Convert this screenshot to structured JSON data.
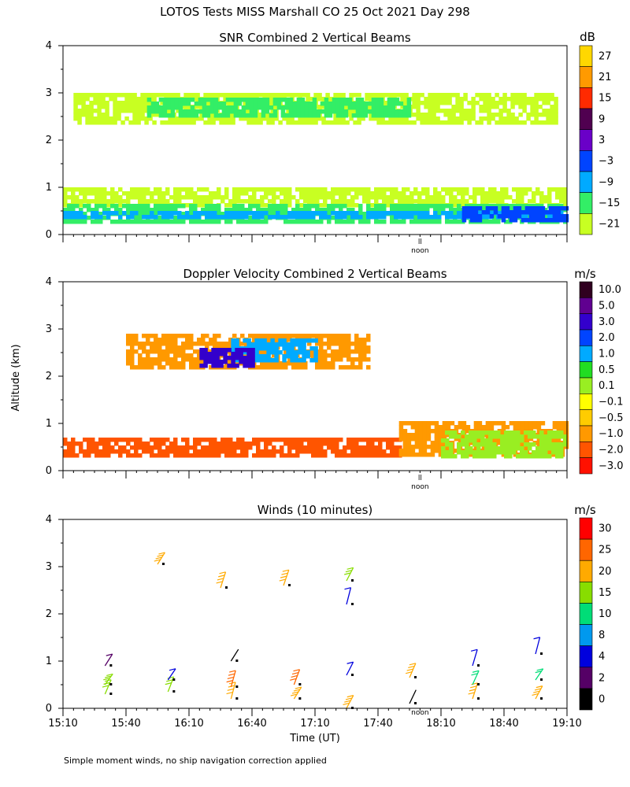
{
  "figure": {
    "main_title": "LOTOS Tests MISS Marshall CO  25 Oct 2021 Day 298",
    "y_axis_label": "Altitude (km)",
    "x_axis_label": "Time (UT)",
    "footnote": "Simple moment winds, no ship navigation correction applied",
    "noon_label": "noon",
    "noon_mark": "ll"
  },
  "chart_data": [
    {
      "type": "heatmap",
      "title": "SNR Combined 2 Vertical Beams",
      "unit": "dB",
      "ylim": [
        0,
        4
      ],
      "yticks": [
        "0",
        "1",
        "2",
        "3",
        "4"
      ],
      "x_start_hhmm": "15:10",
      "x_end_hhmm": "19:10",
      "noon_time": "18:00",
      "colorbar": {
        "labels": [
          "27",
          "21",
          "15",
          "9",
          "3",
          "−3",
          "−9",
          "−15",
          "−21"
        ],
        "colors": [
          "#ffd700",
          "#ff9a00",
          "#ff2a00",
          "#500050",
          "#6a00c8",
          "#0044ff",
          "#00aaff",
          "#33ee66",
          "#c8ff22"
        ]
      },
      "layers": [
        {
          "alt_range": [
            2.35,
            3.0
          ],
          "time_range": [
            "15:15",
            "19:05"
          ],
          "color": "#c8ff22"
        },
        {
          "alt_range": [
            2.55,
            2.9
          ],
          "time_range": [
            "15:50",
            "17:55"
          ],
          "color": "#33ee66"
        },
        {
          "alt_range": [
            0.6,
            1.0
          ],
          "time_range": [
            "15:10",
            "19:10"
          ],
          "color": "#c8ff22"
        },
        {
          "alt_range": [
            0.3,
            0.65
          ],
          "time_range": [
            "15:10",
            "19:10"
          ],
          "color": "#33ee66"
        },
        {
          "alt_range": [
            0.35,
            0.5
          ],
          "time_range": [
            "15:10",
            "19:10"
          ],
          "color": "#00aaff"
        },
        {
          "alt_range": [
            0.3,
            0.6
          ],
          "time_range": [
            "18:20",
            "19:10"
          ],
          "color": "#0044ff"
        }
      ]
    },
    {
      "type": "heatmap",
      "title": "Doppler Velocity Combined 2 Vertical Beams",
      "unit": "m/s",
      "ylim": [
        0,
        4
      ],
      "yticks": [
        "0",
        "1",
        "2",
        "3",
        "4"
      ],
      "x_start_hhmm": "15:10",
      "x_end_hhmm": "19:10",
      "noon_time": "18:00",
      "colorbar": {
        "labels": [
          "10.0",
          "5.0",
          "3.0",
          "2.0",
          "1.0",
          "0.5",
          "0.1",
          "−0.1",
          "−0.5",
          "−1.0",
          "−2.0",
          "−3.0"
        ],
        "colors": [
          "#300020",
          "#600090",
          "#3300cc",
          "#0044ff",
          "#00aaff",
          "#22dd22",
          "#99ee22",
          "#ffff00",
          "#ffcc00",
          "#ff9900",
          "#ff5500",
          "#ff1100"
        ]
      },
      "layers": [
        {
          "alt_range": [
            2.15,
            2.9
          ],
          "time_range": [
            "15:40",
            "17:35"
          ],
          "color": "#ff9900"
        },
        {
          "alt_range": [
            2.3,
            2.8
          ],
          "time_range": [
            "16:30",
            "17:10"
          ],
          "color": "#00aaff"
        },
        {
          "alt_range": [
            2.2,
            2.6
          ],
          "time_range": [
            "16:15",
            "16:40"
          ],
          "color": "#3300cc"
        },
        {
          "alt_range": [
            0.3,
            0.7
          ],
          "time_range": [
            "15:10",
            "17:50"
          ],
          "color": "#ff5500"
        },
        {
          "alt_range": [
            0.3,
            1.05
          ],
          "time_range": [
            "17:50",
            "19:10"
          ],
          "color": "#ff9900"
        },
        {
          "alt_range": [
            0.3,
            0.85
          ],
          "time_range": [
            "18:10",
            "19:10"
          ],
          "color": "#99ee22"
        }
      ]
    },
    {
      "type": "scatter",
      "title": "Winds (10 minutes)",
      "unit": "m/s",
      "ylim": [
        0,
        4
      ],
      "yticks": [
        "0",
        "1",
        "2",
        "3",
        "4"
      ],
      "xticks": [
        "15:10",
        "15:40",
        "16:10",
        "16:40",
        "17:10",
        "17:40",
        "18:10",
        "18:40",
        "19:10"
      ],
      "x_start_hhmm": "15:10",
      "x_end_hhmm": "19:10",
      "noon_time": "18:00",
      "colorbar": {
        "labels": [
          "30",
          "25",
          "20",
          "15",
          "10",
          "8",
          "4",
          "2",
          "0"
        ],
        "colors": [
          "#ff0000",
          "#ff6600",
          "#ffaa00",
          "#88dd00",
          "#00dd77",
          "#0099ee",
          "#0000dd",
          "#550066",
          "#000000"
        ]
      },
      "barbs": [
        {
          "time": "15:30",
          "alt": 0.3,
          "speed": 17
        },
        {
          "time": "15:30",
          "alt": 0.5,
          "speed": 19
        },
        {
          "time": "15:30",
          "alt": 0.9,
          "speed": 3
        },
        {
          "time": "16:00",
          "alt": 0.35,
          "speed": 18
        },
        {
          "time": "16:00",
          "alt": 0.6,
          "speed": 5
        },
        {
          "time": "15:55",
          "alt": 3.05,
          "speed": 22
        },
        {
          "time": "16:30",
          "alt": 0.2,
          "speed": 24
        },
        {
          "time": "16:30",
          "alt": 0.45,
          "speed": 26
        },
        {
          "time": "16:25",
          "alt": 2.55,
          "speed": 23
        },
        {
          "time": "16:30",
          "alt": 1.0,
          "speed": 0
        },
        {
          "time": "17:00",
          "alt": 0.2,
          "speed": 21
        },
        {
          "time": "17:00",
          "alt": 0.5,
          "speed": 26
        },
        {
          "time": "16:55",
          "alt": 2.6,
          "speed": 24
        },
        {
          "time": "17:25",
          "alt": 0.0,
          "speed": 21
        },
        {
          "time": "17:25",
          "alt": 0.7,
          "speed": 4
        },
        {
          "time": "17:25",
          "alt": 2.7,
          "speed": 18
        },
        {
          "time": "17:25",
          "alt": 2.2,
          "speed": 4
        },
        {
          "time": "17:55",
          "alt": 0.1,
          "speed": 1
        },
        {
          "time": "17:55",
          "alt": 0.65,
          "speed": 22
        },
        {
          "time": "18:25",
          "alt": 0.2,
          "speed": 22
        },
        {
          "time": "18:25",
          "alt": 0.5,
          "speed": 12
        },
        {
          "time": "18:25",
          "alt": 0.9,
          "speed": 6
        },
        {
          "time": "18:55",
          "alt": 0.2,
          "speed": 24
        },
        {
          "time": "18:55",
          "alt": 0.6,
          "speed": 10
        },
        {
          "time": "18:55",
          "alt": 1.15,
          "speed": 5
        }
      ]
    }
  ]
}
